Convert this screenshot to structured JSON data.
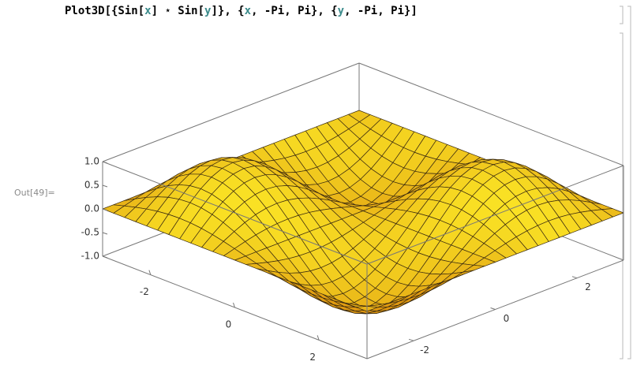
{
  "input": {
    "segments": [
      "Plot3D[{Sin[",
      "x",
      "] ⋆ Sin[",
      "y",
      "]}, {",
      "x",
      ", -Pi, Pi}, {",
      "y",
      ", -Pi, Pi}]"
    ]
  },
  "output": {
    "label": "Out[49]=",
    "z_ticks": [
      "1.0",
      "0.5",
      "0.0",
      "-0.5",
      "-1.0"
    ],
    "x_ticks": [
      "-2",
      "0",
      "2"
    ],
    "y_ticks": [
      "2",
      "0",
      "-2"
    ]
  }
}
